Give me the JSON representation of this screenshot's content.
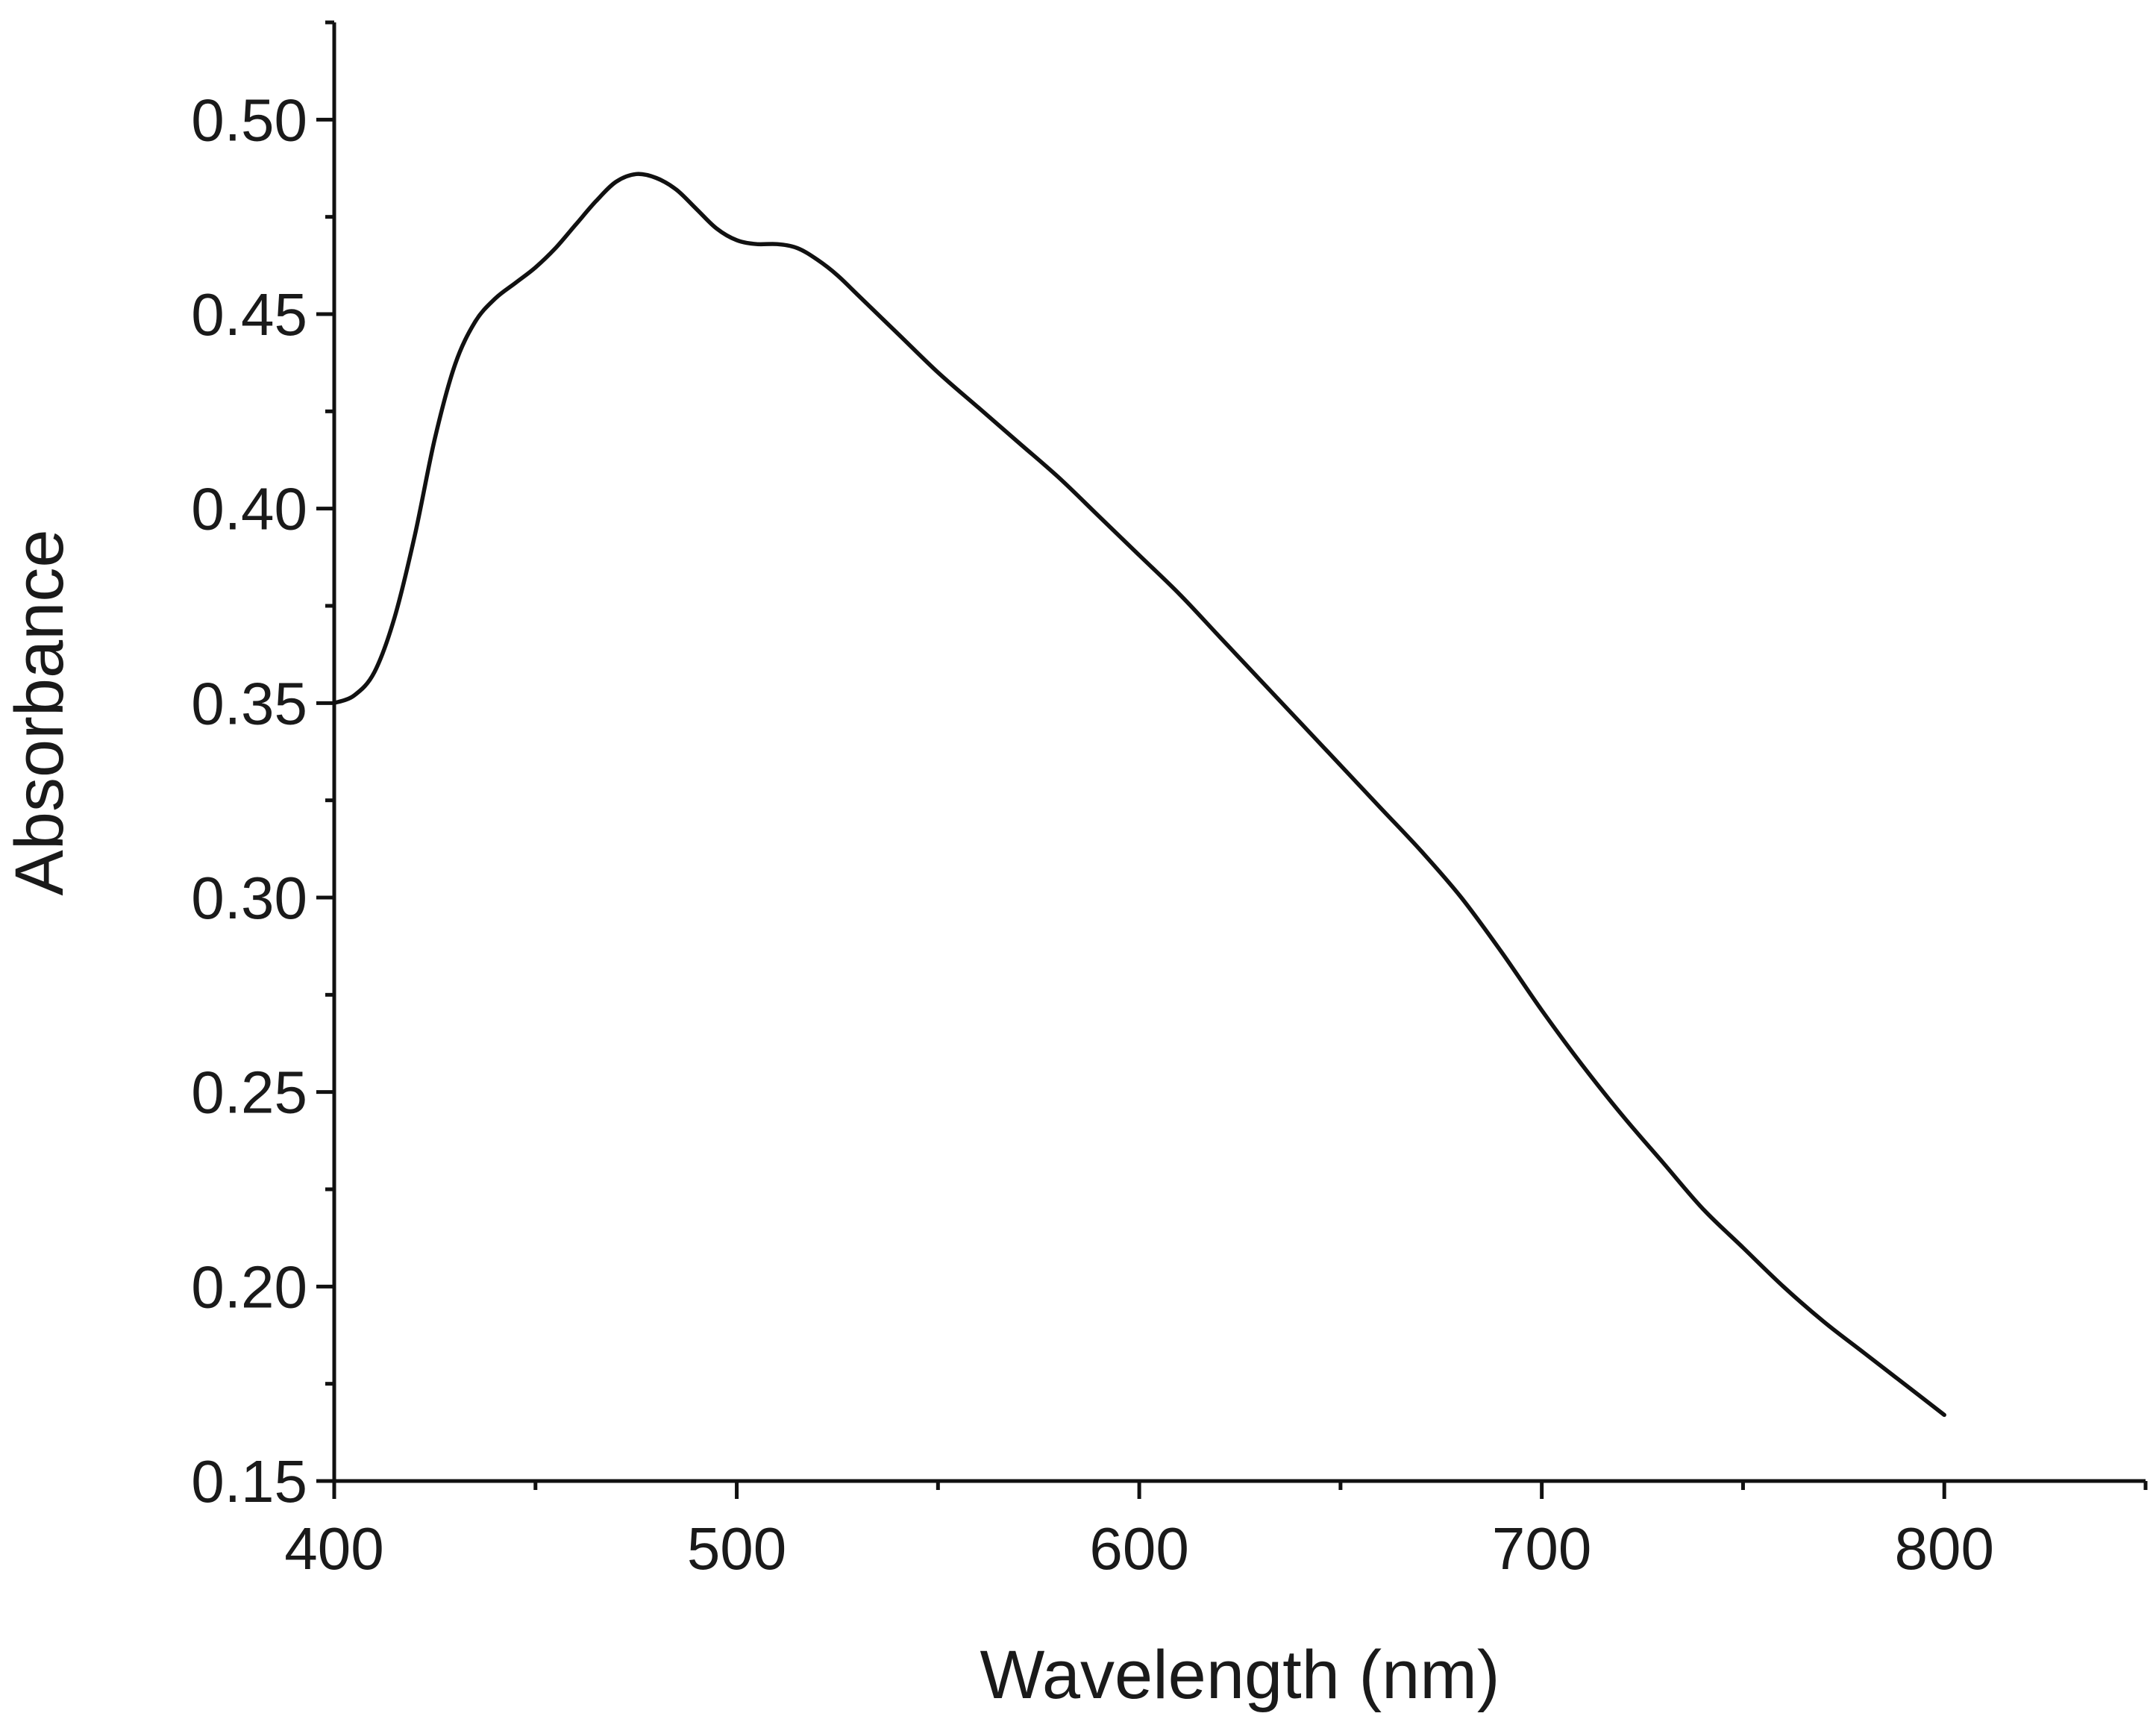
{
  "chart_data": {
    "type": "line",
    "title": "",
    "xlabel": "Wavelength (nm)",
    "ylabel": "Absorbance",
    "xlim": [
      400,
      850
    ],
    "ylim": [
      0.15,
      0.525
    ],
    "x_ticks": [
      400,
      500,
      600,
      700,
      800
    ],
    "x_tick_labels": [
      "400",
      "500",
      "600",
      "700",
      "800"
    ],
    "y_ticks": [
      0.15,
      0.2,
      0.25,
      0.3,
      0.35,
      0.4,
      0.45,
      0.5
    ],
    "y_tick_labels": [
      "0.15",
      "0.20",
      "0.25",
      "0.30",
      "0.35",
      "0.40",
      "0.45",
      "0.50"
    ],
    "grid": false,
    "legend": "none",
    "line_color": "#111111",
    "series": [
      {
        "x": [
          400,
          405,
          410,
          415,
          420,
          425,
          430,
          435,
          440,
          445,
          450,
          455,
          460,
          465,
          470,
          475,
          480,
          485,
          490,
          495,
          500,
          505,
          510,
          515,
          520,
          525,
          530,
          540,
          550,
          560,
          570,
          580,
          590,
          600,
          610,
          620,
          630,
          640,
          650,
          660,
          670,
          680,
          690,
          700,
          710,
          720,
          730,
          740,
          750,
          760,
          770,
          780,
          790,
          800
        ],
        "y": [
          0.35,
          0.352,
          0.358,
          0.372,
          0.393,
          0.418,
          0.437,
          0.448,
          0.454,
          0.458,
          0.462,
          0.467,
          0.473,
          0.479,
          0.484,
          0.486,
          0.485,
          0.482,
          0.477,
          0.472,
          0.469,
          0.468,
          0.468,
          0.467,
          0.464,
          0.46,
          0.455,
          0.445,
          0.435,
          0.426,
          0.417,
          0.408,
          0.398,
          0.388,
          0.378,
          0.367,
          0.356,
          0.345,
          0.334,
          0.323,
          0.312,
          0.3,
          0.286,
          0.271,
          0.257,
          0.244,
          0.232,
          0.22,
          0.21,
          0.2,
          0.191,
          0.183,
          0.175,
          0.167
        ]
      }
    ]
  }
}
